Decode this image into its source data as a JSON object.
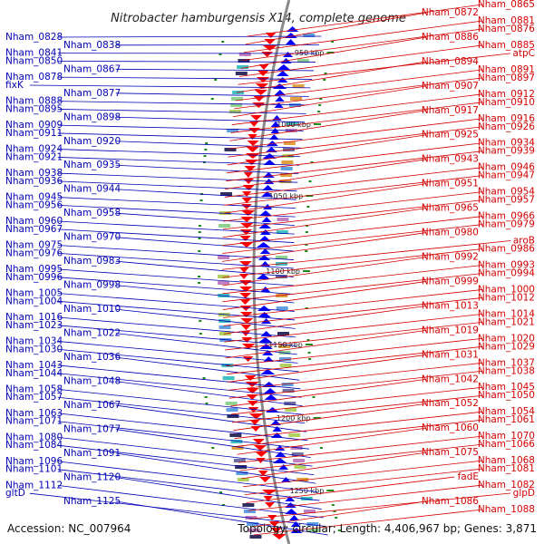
{
  "title": "Nitrobacter hamburgensis X14, complete genome",
  "footer": {
    "accession": "Accession: NC_007964",
    "summary": "Topology: circular; Length: 4,406,967 bp; Genes: 3,871"
  },
  "colors": {
    "forward": "#0000ff",
    "reverse": "#ff0000",
    "blue_label": "#0000b4",
    "red_label": "#d40000",
    "backbone": "#8a8a8a",
    "tick": "#1a8a1a"
  },
  "ticks": [
    "950 kbp",
    "1000 kbp",
    "1050 kbp",
    "1100 kbp",
    "1150 kbp",
    "1200 kbp",
    "1250 kbp"
  ],
  "left_labels": [
    "Nham_0828",
    "Nham_0838",
    "Nham_0841",
    "Nham_0850",
    "Nham_0867",
    "Nham_0878",
    "fixK",
    "Nham_0877",
    "Nham_0888",
    "Nham_0895",
    "Nham_0898",
    "Nham_0909",
    "Nham_0911",
    "Nham_0920",
    "Nham_0924",
    "Nham_0921",
    "Nham_0935",
    "Nham_0938",
    "Nham_0936",
    "Nham_0944",
    "Nham_0945",
    "Nham_0956",
    "Nham_0958",
    "Nham_0960",
    "Nham_0967",
    "Nham_0970",
    "Nham_0975",
    "Nham_0976",
    "Nham_0983",
    "Nham_0995",
    "Nham_0996",
    "Nham_0998",
    "Nham_1005",
    "Nham_1004",
    "Nham_1010",
    "Nham_1016",
    "Nham_1023",
    "Nham_1022",
    "Nham_1034",
    "Nham_1030",
    "Nham_1036",
    "Nham_1043",
    "Nham_1044",
    "Nham_1048",
    "Nham_1058",
    "Nham_1057",
    "Nham_1067",
    "Nham_1063",
    "Nham_1071",
    "Nham_1077",
    "Nham_1080",
    "Nham_1084",
    "Nham_1091",
    "Nham_1096",
    "Nham_1101",
    "Nham_1120",
    "Nham_1112",
    "gltD",
    "Nham_1125"
  ],
  "right_labels": [
    "Nham_0865",
    "Nham_0872",
    "Nham_0881",
    "Nham_0876",
    "Nham_0886",
    "Nham_0885",
    "atpC",
    "Nham_0894",
    "Nham_0891",
    "Nham_0897",
    "Nham_0907",
    "Nham_0912",
    "Nham_0910",
    "Nham_0917",
    "Nham_0916",
    "Nham_0926",
    "Nham_0925",
    "Nham_0934",
    "Nham_0939",
    "Nham_0943",
    "Nham_0946",
    "Nham_0947",
    "Nham_0951",
    "Nham_0954",
    "Nham_0957",
    "Nham_0965",
    "Nham_0966",
    "Nham_0979",
    "Nham_0980",
    "aroB",
    "Nham_0986",
    "Nham_0992",
    "Nham_0993",
    "Nham_0994",
    "Nham_0999",
    "Nham_1000",
    "Nham_1012",
    "Nham_1013",
    "Nham_1014",
    "Nham_1021",
    "Nham_1019",
    "Nham_1020",
    "Nham_1029",
    "Nham_1031",
    "Nham_1037",
    "Nham_1038",
    "Nham_1042",
    "Nham_1045",
    "Nham_1050",
    "Nham_1052",
    "Nham_1054",
    "Nham_1061",
    "Nham_1060",
    "Nham_1070",
    "Nham_1066",
    "Nham_1075",
    "Nham_1068",
    "Nham_1081",
    "fadE",
    "Nham_1082",
    "glpD",
    "Nham_1086",
    "Nham_1088"
  ]
}
